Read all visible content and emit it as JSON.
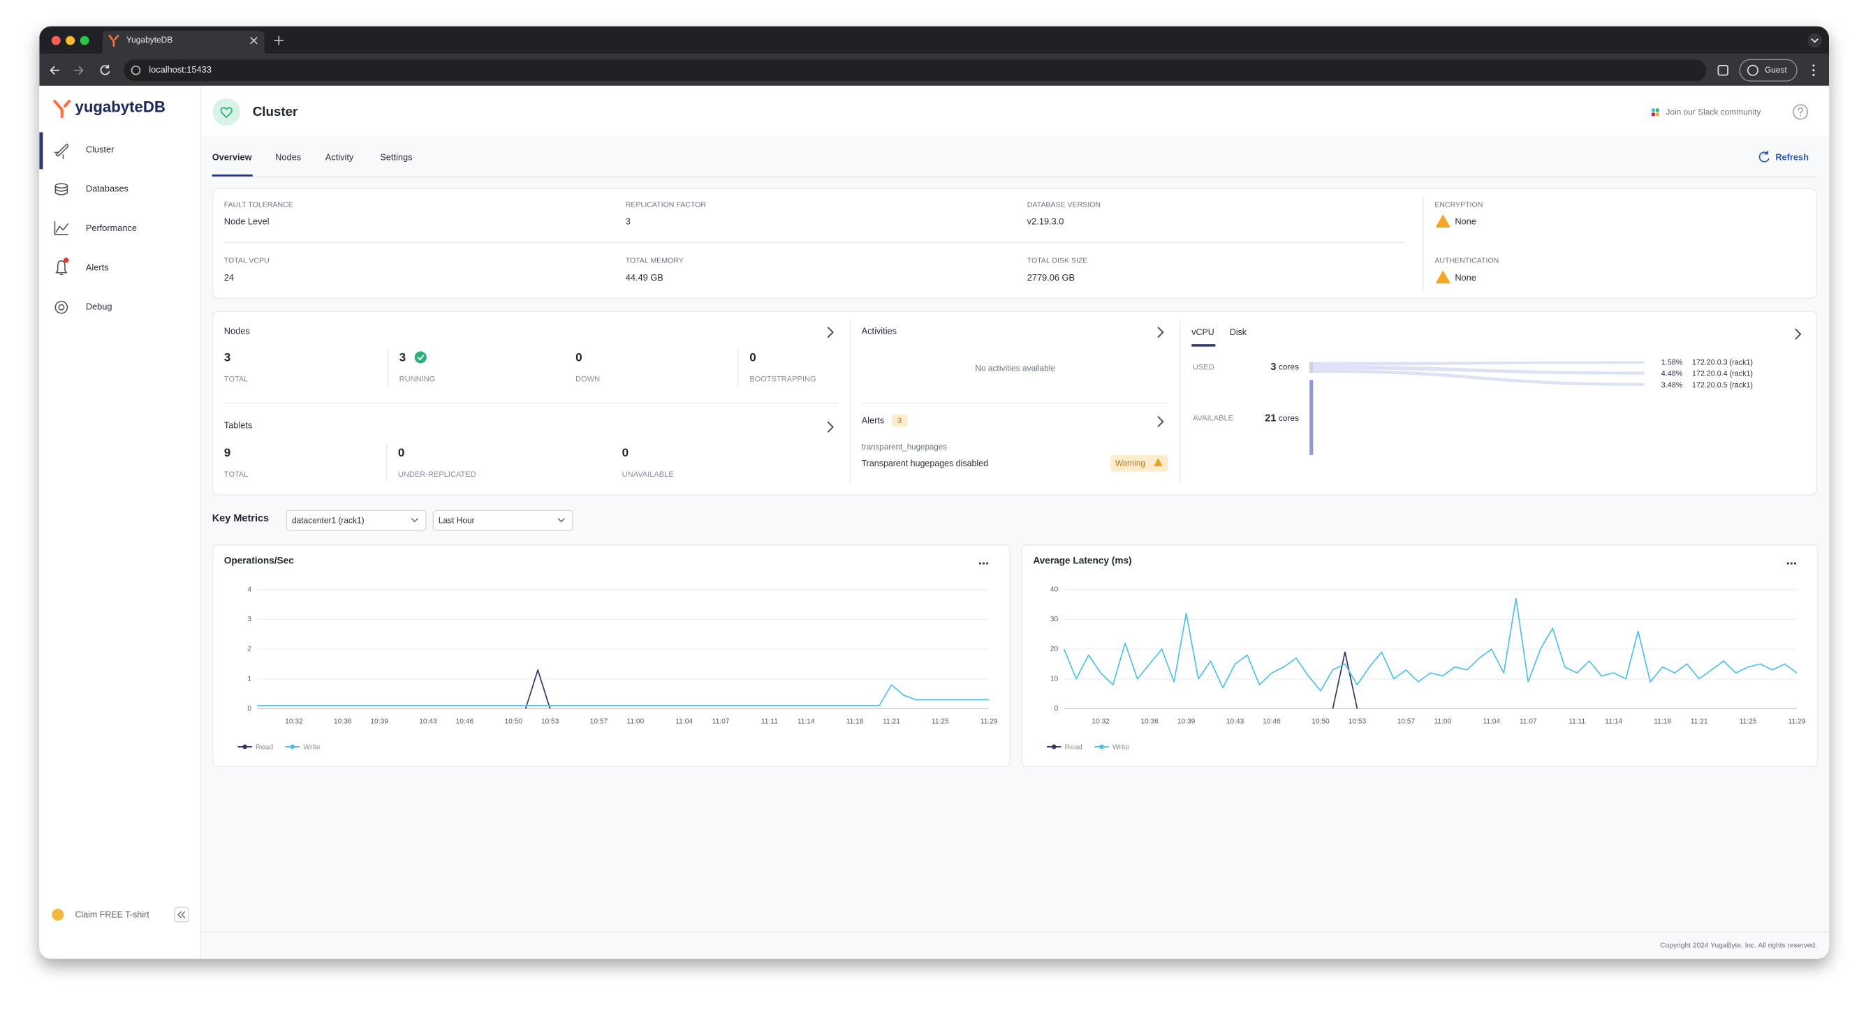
{
  "browser": {
    "tab_title": "YugabyteDB",
    "url": "localhost:15433",
    "profile": "Guest"
  },
  "sidebar": {
    "logo": "yugabyteDB",
    "nav": [
      "Cluster",
      "Databases",
      "Performance",
      "Alerts",
      "Debug"
    ],
    "promo": "Claim FREE T-shirt"
  },
  "header": {
    "title": "Cluster",
    "community": "Join our Slack community",
    "tabs": [
      "Overview",
      "Nodes",
      "Activity",
      "Settings"
    ],
    "refresh": "Refresh"
  },
  "summary": [
    {
      "label": "FAULT TOLERANCE",
      "value": "Node Level"
    },
    {
      "label": "REPLICATION FACTOR",
      "value": "3"
    },
    {
      "label": "DATABASE VERSION",
      "value": "v2.19.3.0"
    },
    {
      "label": "ENCRYPTION",
      "value": "None"
    },
    {
      "label": "TOTAL VCPU",
      "value": "24"
    },
    {
      "label": "TOTAL MEMORY",
      "value": "44.49 GB"
    },
    {
      "label": "TOTAL DISK SIZE",
      "value": "2779.06 GB"
    },
    {
      "label": "AUTHENTICATION",
      "value": "None"
    }
  ],
  "nodes": {
    "title": "Nodes",
    "stats": [
      {
        "value": "3",
        "label": "TOTAL"
      },
      {
        "value": "3",
        "label": "RUNNING"
      },
      {
        "value": "0",
        "label": "DOWN"
      },
      {
        "value": "0",
        "label": "BOOTSTRAPPING"
      }
    ]
  },
  "tablets": {
    "title": "Tablets",
    "stats": [
      {
        "value": "9",
        "label": "TOTAL"
      },
      {
        "value": "0",
        "label": "UNDER-REPLICATED"
      },
      {
        "value": "0",
        "label": "UNAVAILABLE"
      }
    ]
  },
  "activities": {
    "title": "Activities",
    "empty": "No activities available"
  },
  "alerts": {
    "title": "Alerts",
    "count": "3",
    "name": "transparent_hugepages",
    "message": "Transparent hugepages disabled",
    "severity": "Warning"
  },
  "resources": {
    "tabs": [
      "vCPU",
      "Disk"
    ],
    "used_label": "USED",
    "used": "3",
    "used_unit": "cores",
    "available_label": "AVAILABLE",
    "available": "21",
    "available_unit": "cores",
    "nodes": [
      {
        "share": "1.58%",
        "name": "172.20.0.3 (rack1)"
      },
      {
        "share": "4.48%",
        "name": "172.20.0.4 (rack1)"
      },
      {
        "share": "3.48%",
        "name": "172.20.0.5 (rack1)"
      }
    ]
  },
  "key_metrics": {
    "title": "Key Metrics",
    "region": "datacenter1 (rack1)",
    "range": "Last Hour"
  },
  "chart_data": [
    {
      "type": "line",
      "title": "Operations/Sec",
      "categories": [
        null,
        null,
        null,
        "10:32",
        null,
        null,
        null,
        "10:36",
        null,
        null,
        "10:39",
        null,
        null,
        null,
        "10:43",
        null,
        null,
        "10:46",
        null,
        null,
        null,
        "10:50",
        null,
        null,
        "10:53",
        null,
        null,
        null,
        "10:57",
        null,
        null,
        "11:00",
        null,
        null,
        null,
        "11:04",
        null,
        null,
        "11:07",
        null,
        null,
        null,
        "11:11",
        null,
        null,
        "11:14",
        null,
        null,
        null,
        "11:18",
        null,
        null,
        "11:21",
        null,
        null,
        null,
        "11:25",
        null,
        null,
        null,
        "11:29"
      ],
      "series": [
        {
          "name": "Read",
          "color": "#32386b",
          "values": [
            null,
            null,
            null,
            null,
            null,
            null,
            null,
            null,
            null,
            null,
            null,
            null,
            null,
            null,
            null,
            null,
            null,
            null,
            null,
            null,
            null,
            null,
            0,
            1.3,
            0,
            null,
            null,
            null,
            null,
            null,
            null,
            null,
            null,
            null,
            null,
            null,
            null,
            null,
            null,
            null,
            null,
            null,
            null,
            null,
            null,
            null,
            null,
            null,
            null,
            null,
            null,
            null,
            null,
            null,
            null,
            null,
            null,
            null,
            null,
            null,
            null
          ]
        },
        {
          "name": "Write",
          "color": "#4fc1e9",
          "values": [
            0.1,
            0.1,
            0.1,
            0.1,
            0.1,
            0.1,
            0.1,
            0.1,
            0.1,
            0.1,
            0.1,
            0.1,
            0.1,
            0.1,
            0.1,
            0.1,
            0.1,
            0.1,
            0.1,
            0.1,
            0.1,
            0.1,
            0.1,
            0.1,
            0.1,
            0.1,
            0.1,
            0.1,
            0.1,
            0.1,
            0.1,
            0.1,
            0.1,
            0.1,
            0.1,
            0.1,
            0.1,
            0.1,
            0.1,
            0.1,
            0.1,
            0.1,
            0.1,
            0.1,
            0.1,
            0.1,
            0.1,
            0.1,
            0.1,
            0.1,
            0.1,
            0.1,
            0.8,
            0.45,
            0.3,
            0.3,
            0.3,
            0.3,
            0.3,
            0.3,
            0.3
          ]
        }
      ],
      "ylim": [
        0,
        4
      ],
      "yticks": [
        0,
        1,
        2,
        3,
        4
      ],
      "grid": true
    },
    {
      "type": "line",
      "title": "Average Latency (ms)",
      "categories": [
        null,
        null,
        null,
        "10:32",
        null,
        null,
        null,
        "10:36",
        null,
        null,
        "10:39",
        null,
        null,
        null,
        "10:43",
        null,
        null,
        "10:46",
        null,
        null,
        null,
        "10:50",
        null,
        null,
        "10:53",
        null,
        null,
        null,
        "10:57",
        null,
        null,
        "11:00",
        null,
        null,
        null,
        "11:04",
        null,
        null,
        "11:07",
        null,
        null,
        null,
        "11:11",
        null,
        null,
        "11:14",
        null,
        null,
        null,
        "11:18",
        null,
        null,
        "11:21",
        null,
        null,
        null,
        "11:25",
        null,
        null,
        null,
        "11:29"
      ],
      "series": [
        {
          "name": "Read",
          "color": "#32386b",
          "values": [
            null,
            null,
            null,
            null,
            null,
            null,
            null,
            null,
            null,
            null,
            null,
            null,
            null,
            null,
            null,
            null,
            null,
            null,
            null,
            null,
            null,
            null,
            0,
            19,
            0,
            null,
            null,
            null,
            null,
            null,
            null,
            null,
            null,
            null,
            null,
            null,
            null,
            null,
            null,
            null,
            null,
            null,
            null,
            null,
            null,
            null,
            null,
            null,
            null,
            null,
            null,
            null,
            null,
            null,
            null,
            null,
            null,
            null,
            null,
            null,
            null
          ]
        },
        {
          "name": "Write",
          "color": "#4fc1e9",
          "values": [
            20,
            10,
            18,
            12,
            8,
            22,
            10,
            15,
            20,
            9,
            32,
            10,
            16,
            7,
            15,
            18,
            8,
            12,
            14,
            17,
            11,
            6,
            13,
            15,
            8,
            14,
            19,
            10,
            13,
            9,
            12,
            11,
            14,
            13,
            17,
            20,
            12,
            37,
            9,
            20,
            27,
            14,
            12,
            16,
            11,
            12,
            10,
            26,
            9,
            14,
            12,
            15,
            10,
            13,
            16,
            12,
            14,
            15,
            13,
            15,
            12
          ]
        }
      ],
      "ylim": [
        0,
        40
      ],
      "yticks": [
        0,
        10,
        20,
        30,
        40
      ],
      "grid": true
    }
  ],
  "footer": "Copyright 2024 YugaByte, Inc. All rights reserved."
}
